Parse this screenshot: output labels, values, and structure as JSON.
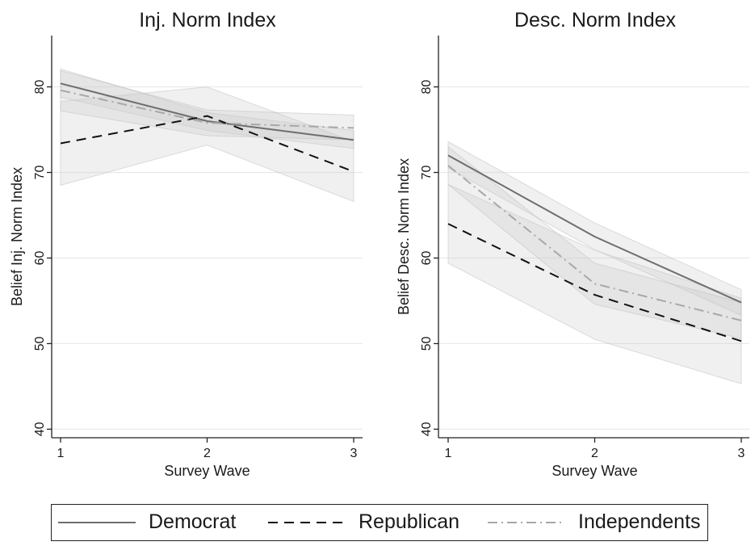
{
  "chart_data": [
    {
      "type": "line",
      "title": "Inj. Norm Index",
      "xlabel": "Survey Wave",
      "ylabel": "Belief Inj. Norm Index",
      "x": [
        1,
        2,
        3
      ],
      "xticks": [
        "1",
        "2",
        "3"
      ],
      "yticks": [
        "40",
        "50",
        "60",
        "70",
        "80"
      ],
      "xlim": [
        1,
        3
      ],
      "ylim": [
        39,
        86
      ],
      "grid": true,
      "series": [
        {
          "name": "Democrat",
          "values": [
            80.4,
            76.0,
            73.8
          ],
          "ci_low": [
            78.8,
            74.9,
            72.8
          ],
          "ci_high": [
            82.1,
            77.0,
            74.9
          ]
        },
        {
          "name": "Republican",
          "values": [
            73.4,
            76.6,
            70.1
          ],
          "ci_low": [
            68.5,
            73.2,
            66.6
          ],
          "ci_high": [
            78.3,
            80.0,
            73.6
          ]
        },
        {
          "name": "Independents",
          "values": [
            79.6,
            75.8,
            75.2
          ],
          "ci_low": [
            77.2,
            74.3,
            73.8
          ],
          "ci_high": [
            81.9,
            77.3,
            76.7
          ]
        }
      ]
    },
    {
      "type": "line",
      "title": "Desc. Norm Index",
      "xlabel": "Survey Wave",
      "ylabel": "Belief Desc. Norm Index",
      "x": [
        1,
        2,
        3
      ],
      "xticks": [
        "1",
        "2",
        "3"
      ],
      "yticks": [
        "40",
        "50",
        "60",
        "70",
        "80"
      ],
      "xlim": [
        1,
        3
      ],
      "ylim": [
        39,
        86
      ],
      "grid": true,
      "series": [
        {
          "name": "Democrat",
          "values": [
            72.0,
            62.5,
            54.8
          ],
          "ci_low": [
            70.5,
            61.0,
            53.3
          ],
          "ci_high": [
            73.6,
            64.1,
            56.3
          ]
        },
        {
          "name": "Republican",
          "values": [
            64.0,
            55.7,
            50.3
          ],
          "ci_low": [
            59.4,
            50.5,
            45.3
          ],
          "ci_high": [
            68.6,
            60.9,
            55.3
          ]
        },
        {
          "name": "Independents",
          "values": [
            70.8,
            57.0,
            52.7
          ],
          "ci_low": [
            68.6,
            54.6,
            50.6
          ],
          "ci_high": [
            73.0,
            59.4,
            54.8
          ]
        }
      ]
    }
  ],
  "legend": {
    "entries": [
      {
        "name": "Democrat",
        "label": "Democrat"
      },
      {
        "name": "Republican",
        "label": "Republican"
      },
      {
        "name": "Independents",
        "label": "Independents"
      }
    ]
  },
  "styles": {
    "Democrat": {
      "color": "#6e6e6e",
      "dash": "none",
      "width": 2
    },
    "Republican": {
      "color": "#111111",
      "dash": "12,8",
      "width": 2
    },
    "Independents": {
      "color": "#a8a8a8",
      "dash": "12,5,2,5",
      "width": 2
    }
  },
  "colors": {
    "ci_fill": "#c8c8c8",
    "grid": "#e9e9e9",
    "axis": "#222222",
    "text": "#1a1a1a"
  }
}
